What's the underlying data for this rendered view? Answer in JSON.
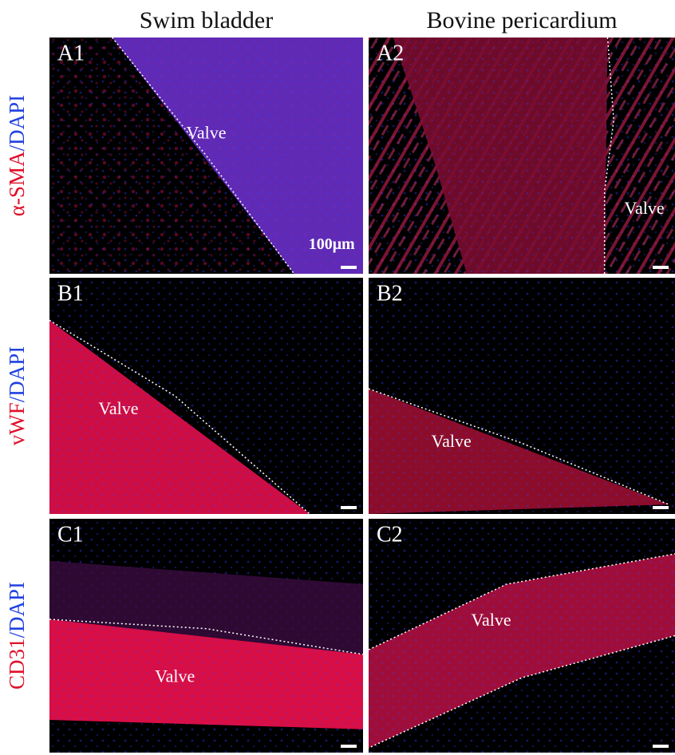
{
  "columns": [
    "Swim bladder",
    "Bovine pericardium"
  ],
  "rows": [
    {
      "marker": "α-SMA",
      "stain": "/DAPI",
      "panels": [
        {
          "label": "A1",
          "annotations": [
            "Valve",
            "100μm"
          ]
        },
        {
          "label": "A2",
          "annotations": [
            "Valve"
          ]
        }
      ]
    },
    {
      "marker": "vWF",
      "stain": "/DAPI",
      "panels": [
        {
          "label": "B1",
          "annotations": [
            "Valve"
          ]
        },
        {
          "label": "B2",
          "annotations": [
            "Valve"
          ]
        }
      ]
    },
    {
      "marker": "CD31",
      "stain": "/DAPI",
      "panels": [
        {
          "label": "C1",
          "annotations": [
            "Valve"
          ]
        },
        {
          "label": "C2",
          "annotations": [
            "Valve"
          ]
        }
      ]
    }
  ]
}
